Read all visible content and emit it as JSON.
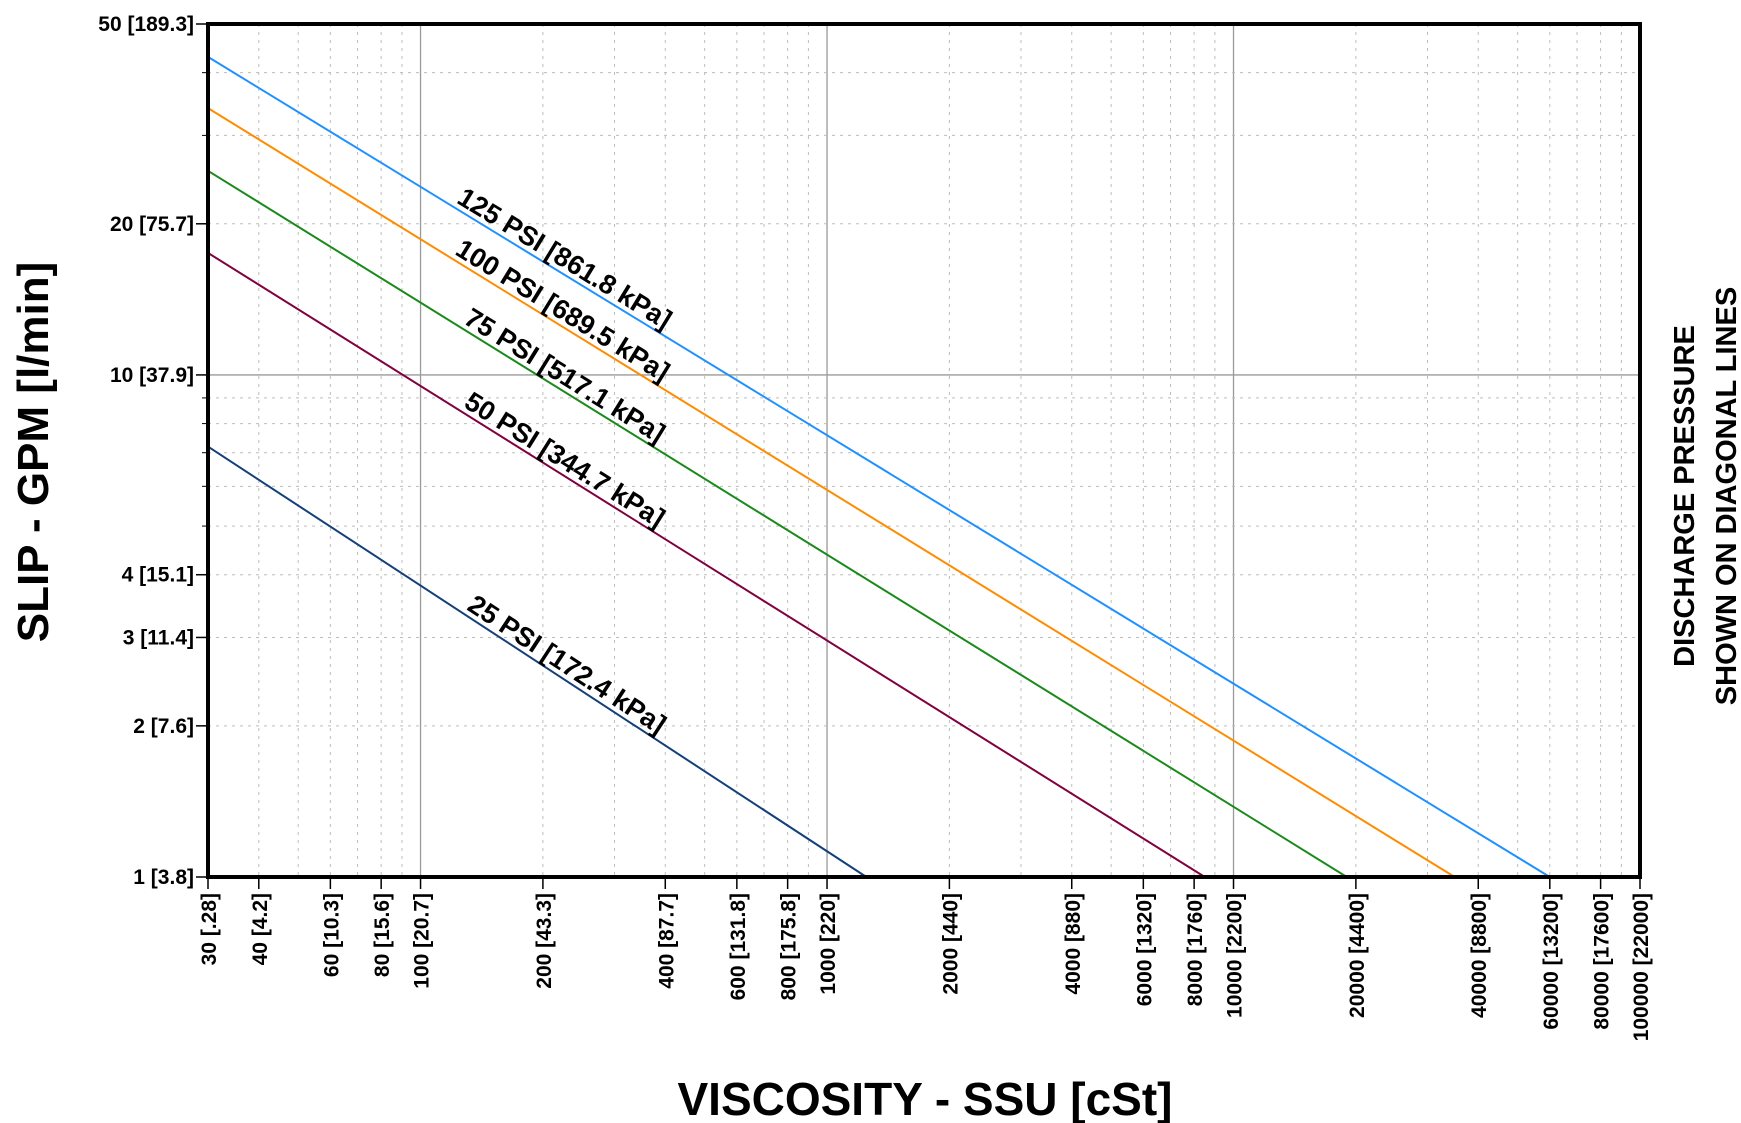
{
  "chart_data": {
    "type": "line",
    "title": "",
    "xlabel": "VISCOSITY - SSU [cSt]",
    "ylabel": "SLIP - GPM [l/min]",
    "right_label": [
      "DISCHARGE PRESSURE",
      "SHOWN ON DIAGONAL LINES"
    ],
    "x_scale": "log",
    "y_scale": "log",
    "xlim": [
      30,
      100000
    ],
    "ylim": [
      1,
      50
    ],
    "grid": true,
    "x_ticks": [
      {
        "value": 30,
        "label": "30 [.28]"
      },
      {
        "value": 40,
        "label": "40 [4.2]"
      },
      {
        "value": 60,
        "label": "60 [10.3]"
      },
      {
        "value": 80,
        "label": "80 [15.6]"
      },
      {
        "value": 100,
        "label": "100 [20.7]"
      },
      {
        "value": 200,
        "label": "200 [43.3]"
      },
      {
        "value": 400,
        "label": "400 [87.7]"
      },
      {
        "value": 600,
        "label": "600 [131.8]"
      },
      {
        "value": 800,
        "label": "800 [175.8]"
      },
      {
        "value": 1000,
        "label": "1000 [220]"
      },
      {
        "value": 2000,
        "label": "2000 [440]"
      },
      {
        "value": 4000,
        "label": "4000 [880]"
      },
      {
        "value": 6000,
        "label": "6000 [1320]"
      },
      {
        "value": 8000,
        "label": "8000 [1760]"
      },
      {
        "value": 10000,
        "label": "10000 [2200]"
      },
      {
        "value": 20000,
        "label": "20000 [4400]"
      },
      {
        "value": 40000,
        "label": "40000 [8800]"
      },
      {
        "value": 60000,
        "label": "60000 [13200]"
      },
      {
        "value": 80000,
        "label": "80000 [17600]"
      },
      {
        "value": 100000,
        "label": "100000 [22000]"
      }
    ],
    "y_ticks": [
      {
        "value": 1,
        "label": "1 [3.8]"
      },
      {
        "value": 2,
        "label": "2 [7.6]"
      },
      {
        "value": 3,
        "label": "3 [11.4]"
      },
      {
        "value": 4,
        "label": "4 [15.1]"
      },
      {
        "value": 10,
        "label": "10 [37.9]"
      },
      {
        "value": 20,
        "label": "20 [75.7]"
      },
      {
        "value": 50,
        "label": "50 [189.3]"
      }
    ],
    "series": [
      {
        "name": "125 PSI [861.8 kPa]",
        "color": "#1e90ff",
        "x": [
          30,
          60000
        ],
        "y": [
          43,
          1.0
        ]
      },
      {
        "name": "100 PSI [689.5 kPa]",
        "color": "#ff8c00",
        "x": [
          30,
          35000
        ],
        "y": [
          34,
          1.0
        ]
      },
      {
        "name": "75 PSI [517.1 kPa]",
        "color": "#1a8a1a",
        "x": [
          30,
          19000
        ],
        "y": [
          25.5,
          1.0
        ]
      },
      {
        "name": "50 PSI [344.7 kPa]",
        "color": "#800040",
        "x": [
          30,
          8500
        ],
        "y": [
          17.5,
          1.0
        ]
      },
      {
        "name": "25 PSI [172.4 kPa]",
        "color": "#14407a",
        "x": [
          30,
          1250
        ],
        "y": [
          7.2,
          1.0
        ]
      }
    ]
  }
}
